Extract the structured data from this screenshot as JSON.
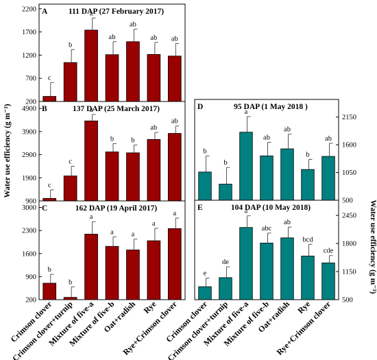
{
  "figure": {
    "left_ylabel": "Water use efficiency (g m⁻³)",
    "right_ylabel": "Water use efficiency (g m⁻³)",
    "categories": [
      "Crimson clover",
      "Crimson clover+turnip",
      "Mixture of five-a",
      "Mixture of five-b",
      "Oat+radish",
      "Rye",
      "Rye+Crimson clover"
    ]
  },
  "chart_data": [
    {
      "type": "bar",
      "panel": "A",
      "title": "111 DAP (27 February 2017)",
      "categories": [
        "Crimson clover",
        "Crimson clover+turnip",
        "Mixture of five-a",
        "Mixture of five-b",
        "Oat+radish",
        "Rye",
        "Rye+Crimson clover"
      ],
      "values": [
        310,
        1040,
        1740,
        1210,
        1490,
        1215,
        1180
      ],
      "errors": [
        300,
        280,
        260,
        280,
        270,
        260,
        270
      ],
      "letters": [
        "c",
        "b",
        "a",
        "ab",
        "ab",
        "ab",
        "ab"
      ],
      "ylim": [
        200,
        2300
      ],
      "yticks": [
        200,
        700,
        1200,
        1700,
        2200
      ],
      "color": "#990000"
    },
    {
      "type": "bar",
      "panel": "B",
      "title": "137 DAP (25 March 2017)",
      "categories": [
        "Crimson clover",
        "Crimson clover+turnip",
        "Mixture of five-a",
        "Mixture of five-b",
        "Oat+radish",
        "Rye",
        "Rye+Crimson clover"
      ],
      "values": [
        1010,
        1980,
        4360,
        3020,
        2980,
        3560,
        3820
      ],
      "errors": [
        370,
        420,
        280,
        360,
        340,
        300,
        320
      ],
      "letters": [
        "c",
        "c",
        "a",
        "b",
        "b",
        "ab",
        "ab"
      ],
      "ylim": [
        900,
        5200
      ],
      "yticks": [
        900,
        1900,
        2900,
        3900,
        4900
      ],
      "color": "#990000"
    },
    {
      "type": "bar",
      "panel": "C",
      "title": "162 DAP (19 April 2017)",
      "categories": [
        "Crimson clover",
        "Crimson clover+turnip",
        "Mixture of five-a",
        "Mixture of five-b",
        "Oat+radish",
        "Rye",
        "Rye+Crimson clover"
      ],
      "values": [
        700,
        270,
        2190,
        1820,
        1710,
        1990,
        2360
      ],
      "errors": [
        270,
        320,
        380,
        290,
        330,
        380,
        320
      ],
      "letters": [
        "b",
        "b",
        "a",
        "a",
        "a",
        "a",
        "a"
      ],
      "ylim": [
        200,
        3200
      ],
      "yticks": [
        200,
        900,
        1600,
        2300,
        3000
      ],
      "color": "#990000"
    },
    {
      "type": "bar",
      "panel": "D",
      "title": "95 DAP (1 May 2018 )",
      "categories": [
        "Crimson clover",
        "Crimson clover+turnip",
        "Mixture of five-a",
        "Mixture of five-b",
        "Oat+radish",
        "Rye",
        "Rye+Crimson clover"
      ],
      "values": [
        1060,
        820,
        1850,
        1380,
        1520,
        1110,
        1370
      ],
      "errors": [
        320,
        330,
        310,
        270,
        290,
        200,
        260
      ],
      "letters": [
        "b",
        "b",
        "a",
        "ab",
        "ab",
        "b",
        "ab"
      ],
      "ylim": [
        500,
        2500
      ],
      "yticks": [
        500,
        1050,
        1600,
        2150
      ],
      "color": "#008080"
    },
    {
      "type": "bar",
      "panel": "E",
      "title": "104 DAP (10 May 2018)",
      "categories": [
        "Crimson clover",
        "Crimson clover+turnip",
        "Mixture of five-a",
        "Mixture of five-b",
        "Oat+radish",
        "Rye",
        "Rye+Crimson clover"
      ],
      "values": [
        800,
        1010,
        2170,
        1810,
        1930,
        1510,
        1350
      ],
      "errors": [
        200,
        250,
        270,
        230,
        250,
        270,
        170
      ],
      "letters": [
        "e",
        "de",
        "a",
        "abc",
        "ab",
        "bcd",
        "cde"
      ],
      "ylim": [
        500,
        2800
      ],
      "yticks": [
        500,
        1150,
        1800,
        2450
      ],
      "color": "#008080"
    }
  ]
}
